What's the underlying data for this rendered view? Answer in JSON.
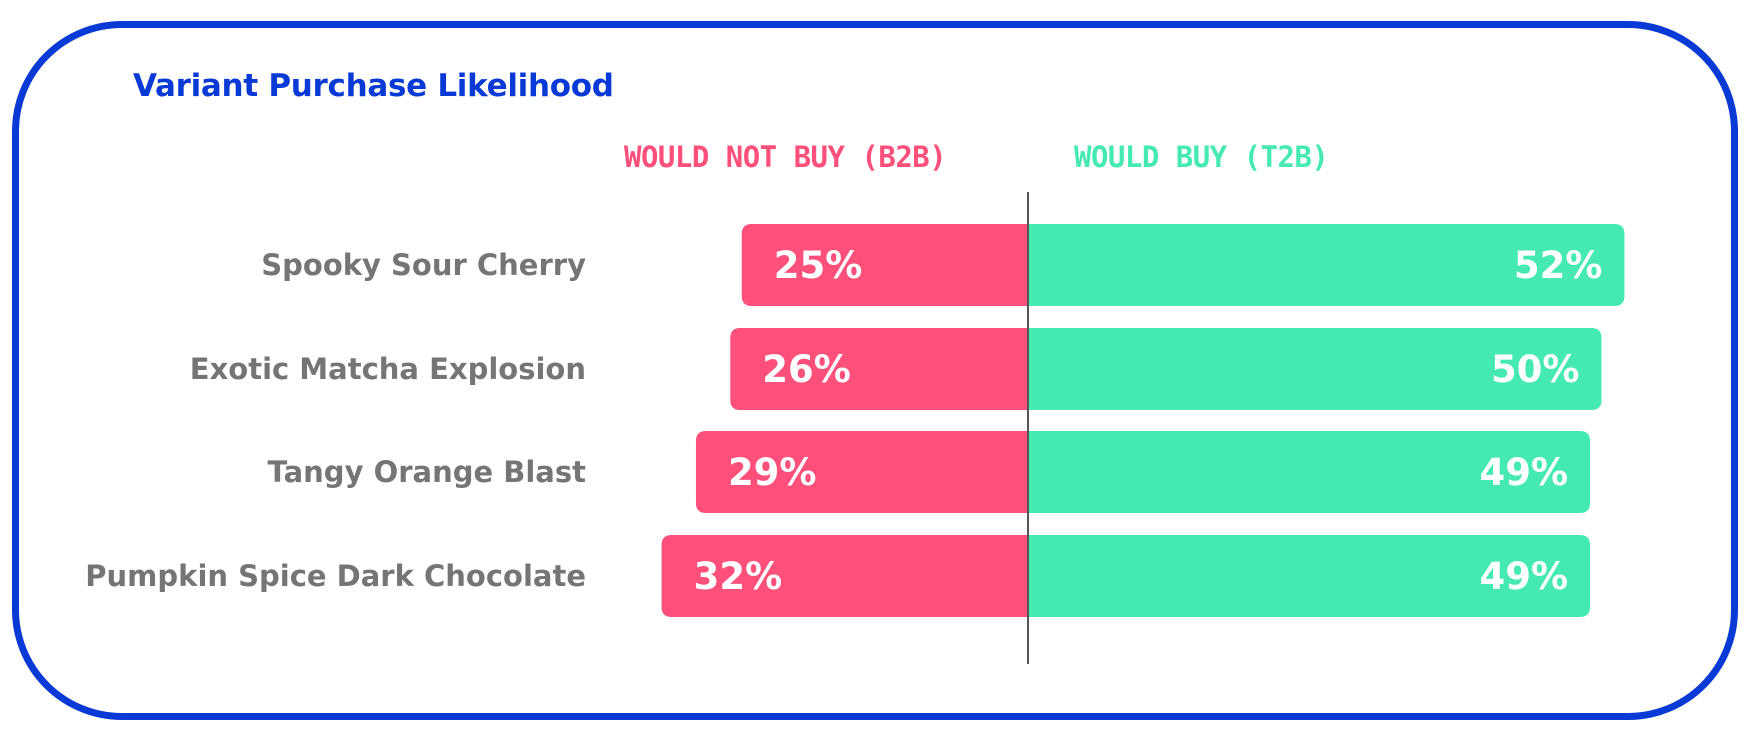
{
  "chart_data": {
    "type": "bar",
    "title": "Variant Purchase Likelihood",
    "categories": [
      "Spooky Sour Cherry",
      "Exotic Matcha Explosion",
      "Tangy Orange Blast",
      "Pumpkin Spice Dark Chocolate"
    ],
    "series": [
      {
        "name": "WOULD NOT BUY (B2B)",
        "values": [
          25,
          26,
          29,
          32
        ],
        "labels": [
          "25%",
          "26%",
          "29%",
          "32%"
        ],
        "color": "#ff4f7b"
      },
      {
        "name": "WOULD BUY (T2B)",
        "values": [
          52,
          50,
          49,
          49
        ],
        "labels": [
          "52%",
          "50%",
          "49%",
          "49%"
        ],
        "color": "#45eab3"
      }
    ],
    "orientation": "diverging-horizontal",
    "grid": false,
    "colors": {
      "frame": "#0a3ad6",
      "title": "#0a3ad6",
      "category_text": "#757575",
      "value_text": "#ffffff",
      "axis": "#555555"
    }
  }
}
